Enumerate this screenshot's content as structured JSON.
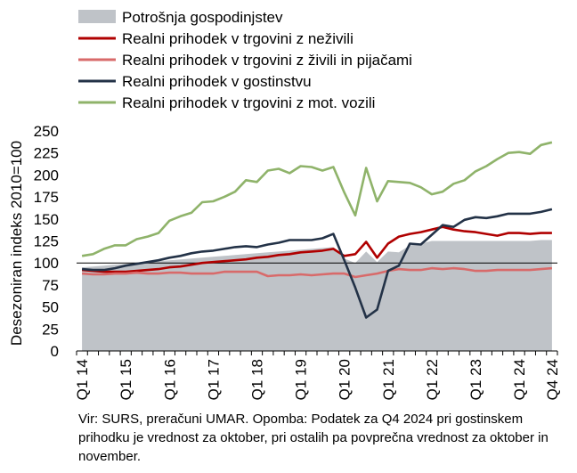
{
  "note": "Vir: SURS, preračuni UMAR. Opomba: Podatek za Q4 2024 pri gostinskem prihodku je vrednost za oktober, pri ostalih pa povprečna vrednost za oktober in november.",
  "chart_data": {
    "type": "line",
    "ylabel": "Desezoniran indeks 2010=100",
    "ylim": [
      0,
      250
    ],
    "yticks": [
      0,
      25,
      50,
      75,
      100,
      125,
      150,
      175,
      200,
      225,
      250
    ],
    "baseline": 100,
    "legend_position": "top",
    "grid": false,
    "x_tick_labels": [
      "Q1 14",
      "Q1 15",
      "Q1 16",
      "Q1 17",
      "Q1 18",
      "Q1 19",
      "Q1 20",
      "Q1 21",
      "Q1 22",
      "Q1 23",
      "Q1 24",
      "Q4 24"
    ],
    "x_tick_positions": [
      0,
      4,
      8,
      12,
      16,
      20,
      24,
      28,
      32,
      36,
      40,
      43
    ],
    "legend": [
      "Potrošnja gospodinjstev",
      "Realni prihodek v trgovini z neživili",
      "Realni prihodek v trgovini z živili in pijačami",
      "Realni prihodek v gostinstvu",
      "Realni prihodek v trgovini z mot. vozili"
    ],
    "series": [
      {
        "name": "Potrošnja gospodinjstev",
        "kind": "area",
        "color": "#bfc3c8",
        "values": [
          95,
          96,
          97,
          98,
          99,
          100,
          101,
          102,
          103,
          104,
          105,
          106,
          107,
          108,
          109,
          110,
          111,
          112,
          113,
          114,
          115,
          116,
          117,
          118,
          105,
          100,
          113,
          101,
          113,
          112,
          120,
          122,
          125,
          125,
          125,
          125,
          125,
          125,
          125,
          125,
          125,
          125,
          126,
          126
        ]
      },
      {
        "name": "Realni prihodek v trgovini z neživili",
        "kind": "line",
        "color": "#b00000",
        "values": [
          92,
          91,
          90,
          90,
          90,
          91,
          92,
          93,
          95,
          96,
          98,
          100,
          101,
          102,
          103,
          104,
          106,
          107,
          109,
          110,
          112,
          113,
          114,
          116,
          108,
          110,
          124,
          106,
          122,
          130,
          133,
          135,
          138,
          141,
          138,
          136,
          135,
          133,
          131,
          134,
          134,
          133,
          134,
          134
        ]
      },
      {
        "name": "Realni prihodek v trgovini z živili in pijačami",
        "kind": "line",
        "color": "#d86a6a",
        "values": [
          88,
          87,
          87,
          88,
          88,
          89,
          88,
          88,
          89,
          89,
          88,
          88,
          88,
          90,
          90,
          90,
          90,
          85,
          86,
          86,
          87,
          86,
          87,
          88,
          88,
          84,
          86,
          88,
          91,
          93,
          92,
          92,
          94,
          93,
          94,
          93,
          91,
          91,
          92,
          92,
          92,
          92,
          93,
          94
        ]
      },
      {
        "name": "Realni prihodek v gostinstvu",
        "kind": "line",
        "color": "#233247",
        "values": [
          93,
          92,
          92,
          94,
          97,
          99,
          101,
          103,
          106,
          108,
          111,
          113,
          114,
          116,
          118,
          119,
          118,
          121,
          123,
          126,
          126,
          126,
          128,
          133,
          103,
          72,
          38,
          47,
          91,
          97,
          122,
          121,
          132,
          143,
          141,
          149,
          152,
          151,
          153,
          156,
          156,
          156,
          158,
          161
        ]
      },
      {
        "name": "Realni prihodek v trgovini z mot. vozili",
        "kind": "line",
        "color": "#8fb36a",
        "values": [
          108,
          110,
          116,
          120,
          120,
          127,
          130,
          134,
          148,
          153,
          157,
          169,
          170,
          175,
          181,
          194,
          192,
          205,
          207,
          202,
          210,
          209,
          205,
          209,
          180,
          154,
          208,
          170,
          193,
          192,
          191,
          186,
          178,
          181,
          190,
          194,
          204,
          210,
          218,
          225,
          226,
          224,
          234,
          237
        ]
      }
    ]
  }
}
